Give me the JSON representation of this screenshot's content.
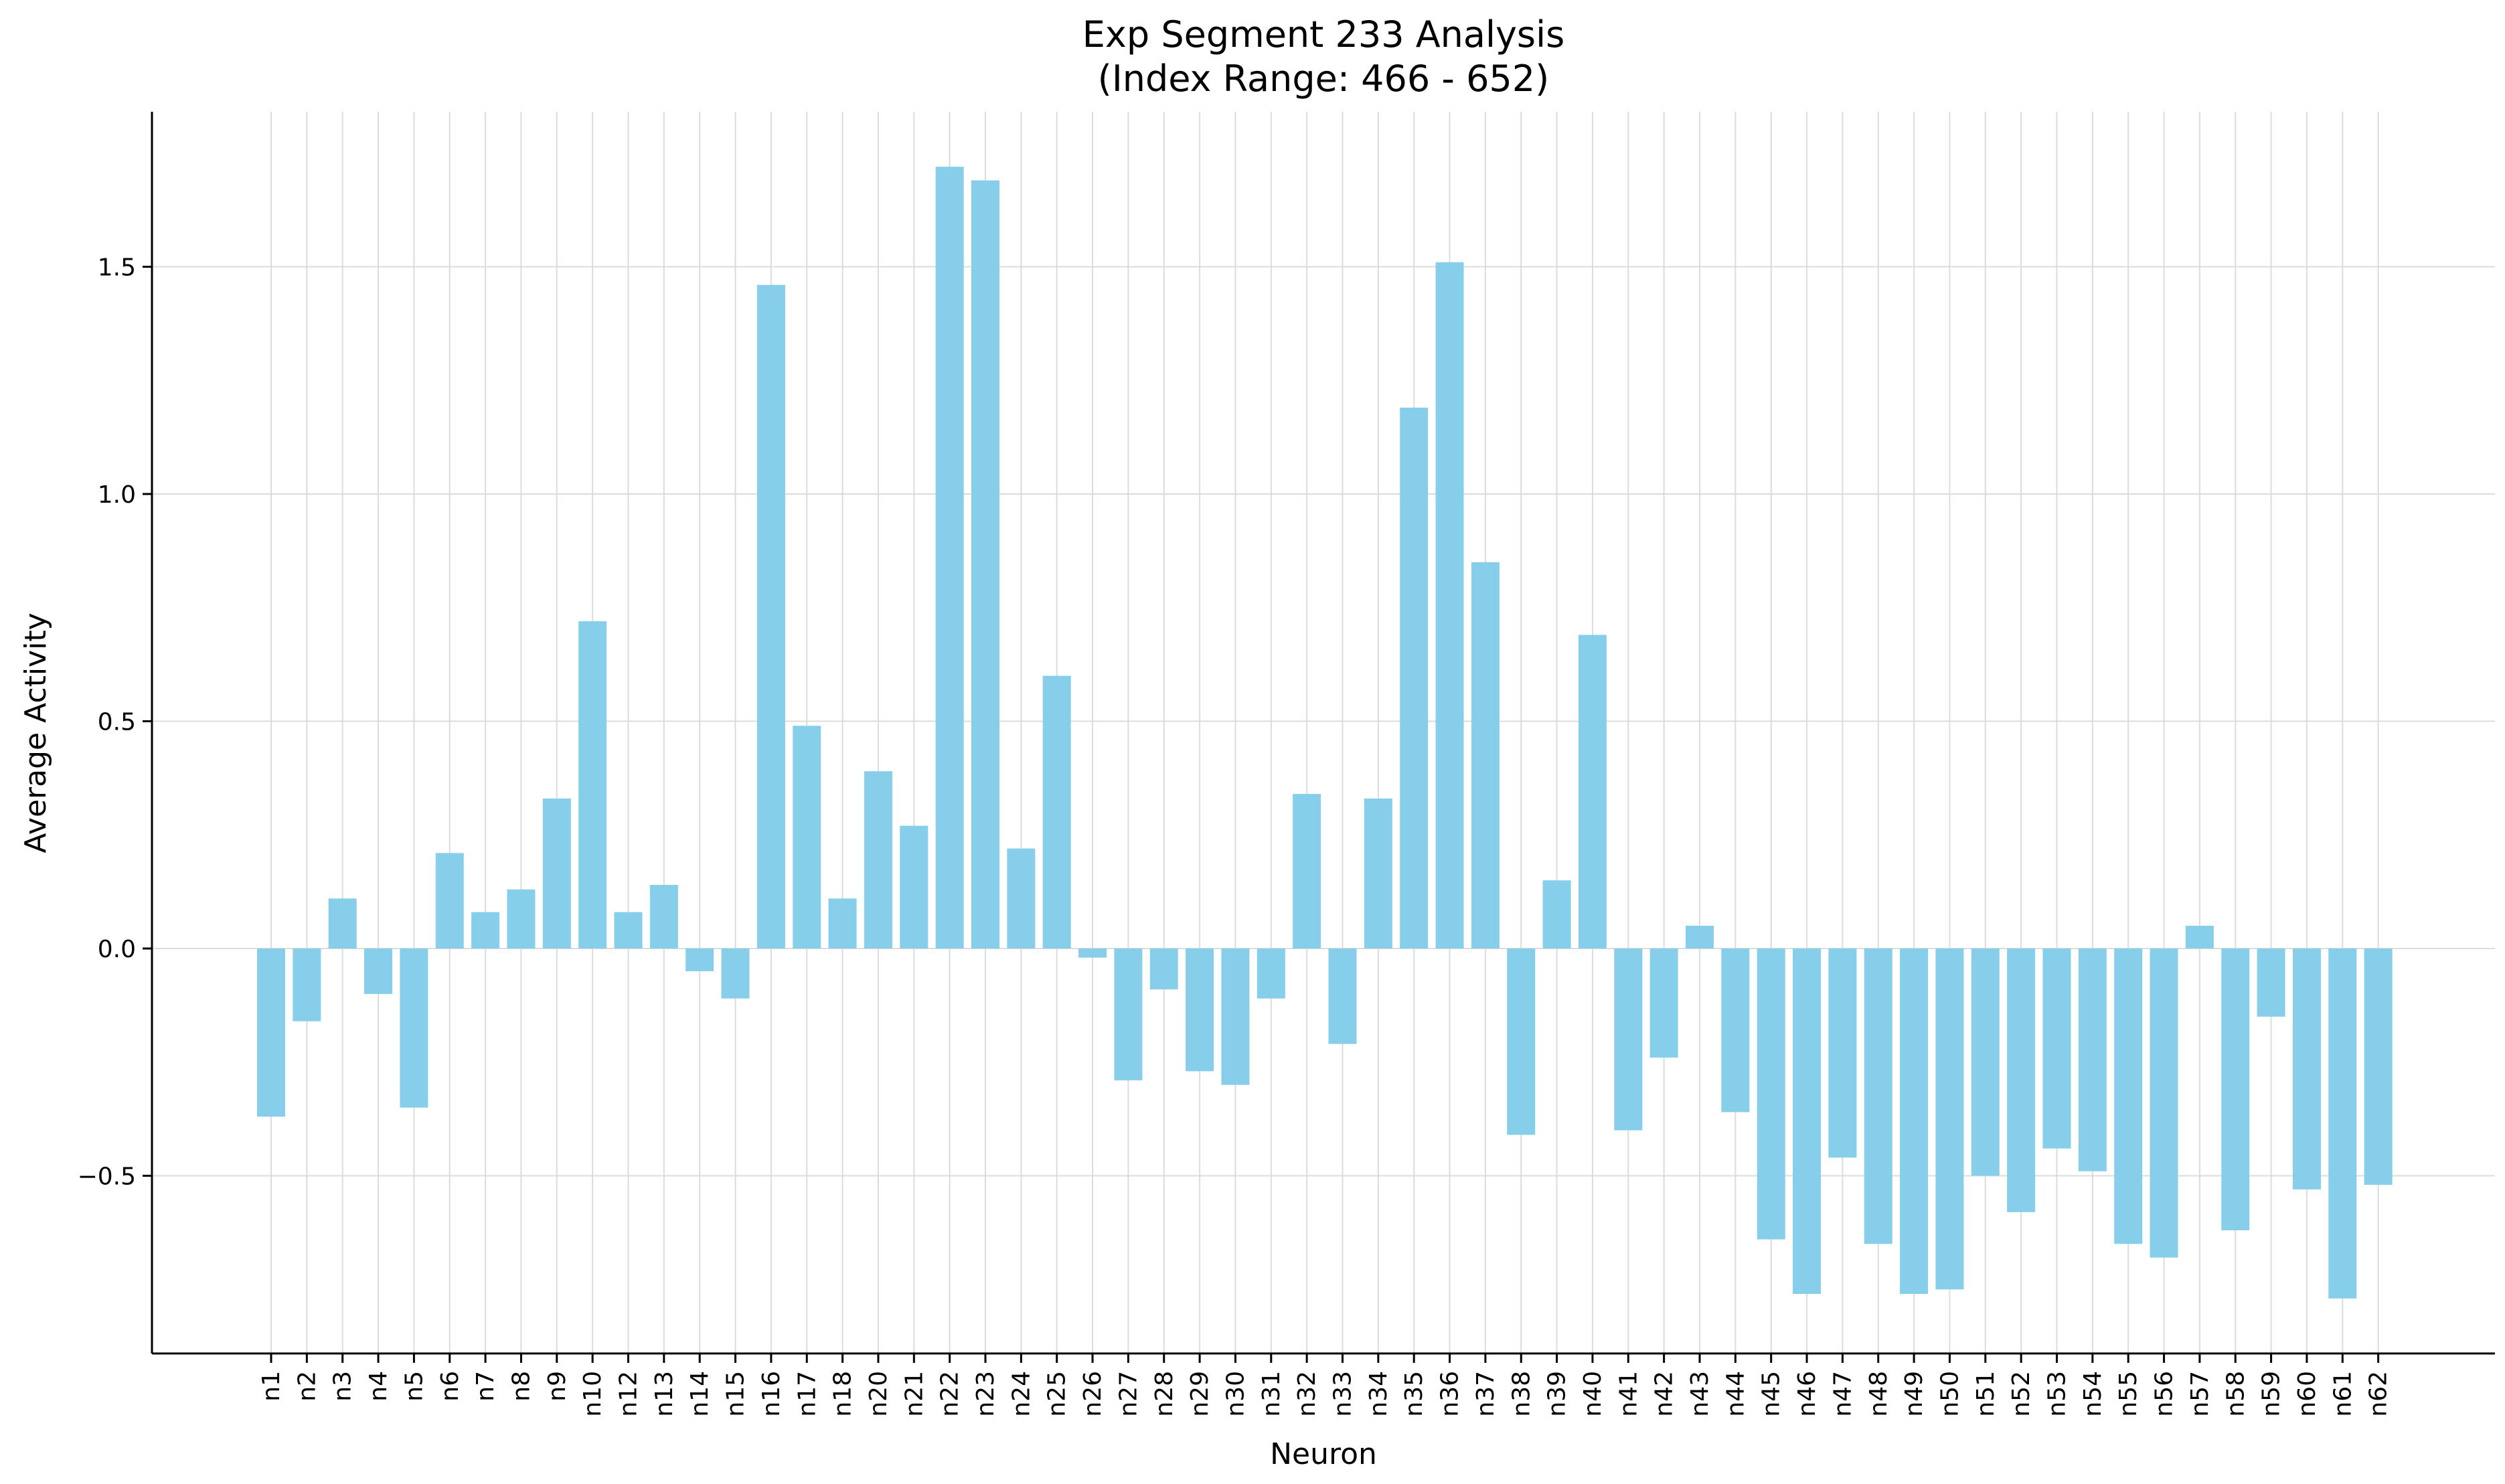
{
  "chart_data": {
    "type": "bar",
    "title": "Exp Segment 233 Analysis",
    "subtitle": "(Index Range: 466 - 652)",
    "xlabel": "Neuron",
    "ylabel": "Average Activity",
    "ylim": [
      -0.89,
      1.84
    ],
    "yticks": [
      -0.5,
      0.0,
      0.5,
      1.0,
      1.5
    ],
    "ytick_labels": [
      "−0.5",
      "0.0",
      "0.5",
      "1.0",
      "1.5"
    ],
    "grid": true,
    "bar_color": "#87ceeb",
    "categories": [
      "n1",
      "n2",
      "n3",
      "n4",
      "n5",
      "n6",
      "n7",
      "n8",
      "n9",
      "n10",
      "n12",
      "n13",
      "n14",
      "n15",
      "n16",
      "n17",
      "n18",
      "n20",
      "n21",
      "n22",
      "n23",
      "n24",
      "n25",
      "n26",
      "n27",
      "n28",
      "n29",
      "n30",
      "n31",
      "n32",
      "n33",
      "n34",
      "n35",
      "n36",
      "n37",
      "n38",
      "n39",
      "n40",
      "n41",
      "n42",
      "n43",
      "n44",
      "n45",
      "n46",
      "n47",
      "n48",
      "n49",
      "n50",
      "n51",
      "n52",
      "n53",
      "n54",
      "n55",
      "n56",
      "n57",
      "n58",
      "n59",
      "n60",
      "n61",
      "n62"
    ],
    "values": [
      -0.37,
      -0.16,
      0.11,
      -0.1,
      -0.35,
      0.21,
      0.08,
      0.13,
      0.33,
      0.72,
      0.08,
      0.14,
      -0.05,
      -0.11,
      1.46,
      0.49,
      0.11,
      0.39,
      0.27,
      1.72,
      1.69,
      0.22,
      0.6,
      -0.02,
      -0.29,
      -0.09,
      -0.27,
      -0.3,
      -0.11,
      0.34,
      -0.21,
      0.33,
      1.19,
      1.51,
      0.85,
      -0.41,
      0.15,
      0.69,
      -0.4,
      -0.24,
      0.05,
      -0.36,
      -0.64,
      -0.76,
      -0.46,
      -0.65,
      -0.76,
      -0.75,
      -0.5,
      -0.58,
      -0.44,
      -0.49,
      -0.65,
      -0.68,
      0.05,
      -0.62,
      -0.15,
      -0.53,
      -0.77,
      -0.52
    ]
  }
}
